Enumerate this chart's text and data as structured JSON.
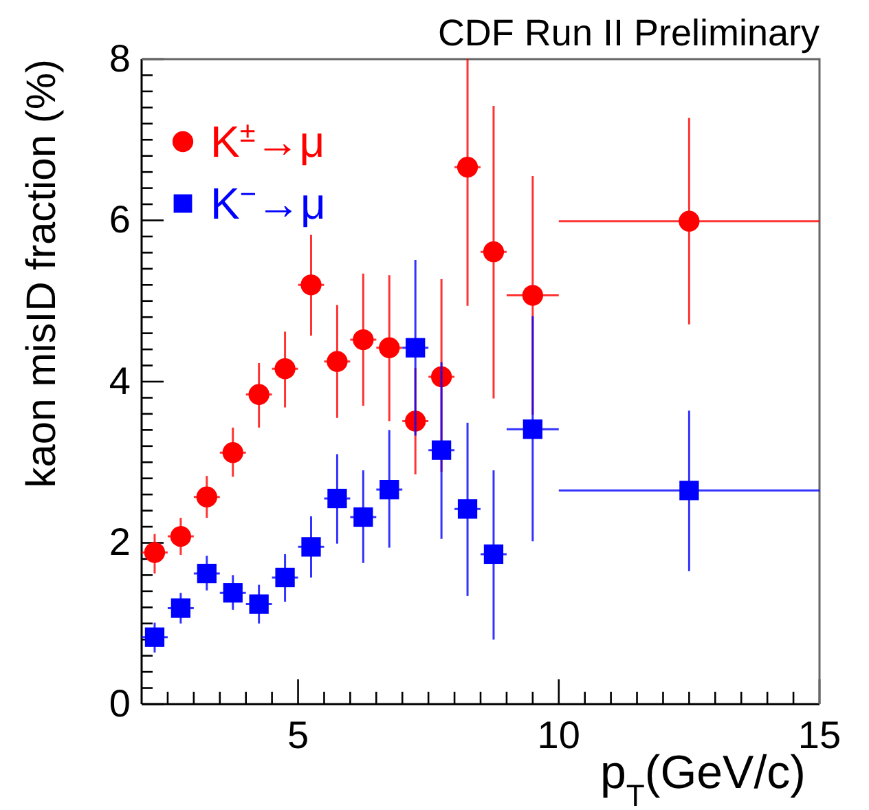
{
  "chart_data": {
    "type": "scatter",
    "title": "CDF Run II Preliminary",
    "xlabel": "p$_{T}$(GeV/c)",
    "ylabel": "kaon misID fraction (%)",
    "xlim": [
      2,
      15
    ],
    "ylim": [
      0,
      8
    ],
    "xticks": [
      {
        "value": 2.5,
        "label": null
      },
      {
        "value": 3,
        "label": null
      },
      {
        "value": 3.5,
        "label": null
      },
      {
        "value": 4,
        "label": null
      },
      {
        "value": 4.5,
        "label": null
      },
      5,
      {
        "value": 5.5,
        "label": null
      },
      {
        "value": 6,
        "label": null
      },
      {
        "value": 6.5,
        "label": null
      },
      {
        "value": 7,
        "label": null
      },
      {
        "value": 7.5,
        "label": null
      },
      {
        "value": 8,
        "label": null
      },
      {
        "value": 8.5,
        "label": null
      },
      {
        "value": 9,
        "label": null
      },
      {
        "value": 9.5,
        "label": null
      },
      10,
      {
        "value": 10.5,
        "label": null
      },
      {
        "value": 11,
        "label": null
      },
      {
        "value": 11.5,
        "label": null
      },
      {
        "value": 12,
        "label": null
      },
      {
        "value": 12.5,
        "label": null
      },
      {
        "value": 13,
        "label": null
      },
      {
        "value": 13.5,
        "label": null
      },
      {
        "value": 14,
        "label": null
      },
      {
        "value": 14.5,
        "label": null
      },
      15
    ],
    "yticks": [
      0,
      {
        "value": 0.2,
        "label": null
      },
      {
        "value": 0.4,
        "label": null
      },
      {
        "value": 0.6,
        "label": null
      },
      {
        "value": 0.8,
        "label": null
      },
      {
        "value": 1,
        "label": null
      },
      {
        "value": 1.2,
        "label": null
      },
      {
        "value": 1.4,
        "label": null
      },
      {
        "value": 1.6,
        "label": null
      },
      {
        "value": 1.8,
        "label": null
      },
      2,
      {
        "value": 2.2,
        "label": null
      },
      {
        "value": 2.4,
        "label": null
      },
      {
        "value": 2.6,
        "label": null
      },
      {
        "value": 2.8,
        "label": null
      },
      {
        "value": 3,
        "label": null
      },
      {
        "value": 3.2,
        "label": null
      },
      {
        "value": 3.4,
        "label": null
      },
      {
        "value": 3.6,
        "label": null
      },
      {
        "value": 3.8,
        "label": null
      },
      4,
      {
        "value": 4.2,
        "label": null
      },
      {
        "value": 4.4,
        "label": null
      },
      {
        "value": 4.6,
        "label": null
      },
      {
        "value": 4.8,
        "label": null
      },
      {
        "value": 5,
        "label": null
      },
      {
        "value": 5.2,
        "label": null
      },
      {
        "value": 5.4,
        "label": null
      },
      {
        "value": 5.6,
        "label": null
      },
      {
        "value": 5.8,
        "label": null
      },
      6,
      {
        "value": 6.2,
        "label": null
      },
      {
        "value": 6.4,
        "label": null
      },
      {
        "value": 6.6,
        "label": null
      },
      {
        "value": 6.8,
        "label": null
      },
      {
        "value": 7,
        "label": null
      },
      {
        "value": 7.2,
        "label": null
      },
      {
        "value": 7.4,
        "label": null
      },
      {
        "value": 7.6,
        "label": null
      },
      {
        "value": 7.8,
        "label": null
      },
      8
    ],
    "grid": false,
    "legend": "top left",
    "x": [
      2.25,
      2.75,
      3.25,
      3.75,
      4.25,
      4.75,
      5.25,
      5.75,
      6.25,
      6.75,
      7.25,
      7.75,
      8.25,
      8.75,
      9.5,
      12.5
    ],
    "series": [
      {
        "name": "K$^{±}$→μ",
        "color": "#ff0000",
        "marker": "circle",
        "values": [
          1.88,
          2.08,
          2.57,
          3.12,
          3.84,
          4.16,
          5.2,
          4.25,
          4.52,
          4.42,
          3.51,
          4.06,
          6.66,
          5.61,
          5.07,
          5.99
        ],
        "errors": [
          [
            1.62,
            2.11
          ],
          [
            1.85,
            2.31
          ],
          [
            2.31,
            2.83
          ],
          [
            2.82,
            3.43
          ],
          [
            3.43,
            4.23
          ],
          [
            3.68,
            4.62
          ],
          [
            4.57,
            5.82
          ],
          [
            3.55,
            4.95
          ],
          [
            3.7,
            5.34
          ],
          [
            3.51,
            5.32
          ],
          [
            2.85,
            4.17
          ],
          [
            2.88,
            5.27
          ],
          [
            4.94,
            8
          ],
          [
            3.79,
            7.42
          ],
          [
            3.59,
            6.55
          ],
          [
            4.71,
            7.27
          ]
        ],
        "xerrors": [
          0.25,
          0.25,
          0.25,
          0.25,
          0.25,
          0.25,
          0.25,
          0.25,
          0.25,
          0.25,
          0.25,
          0.25,
          0.25,
          0.25,
          0.5,
          2.5
        ]
      },
      {
        "name": "K$^{−}$→μ",
        "color": "#0000ff",
        "marker": "square",
        "values": [
          0.83,
          1.19,
          1.62,
          1.38,
          1.24,
          1.57,
          1.95,
          2.55,
          2.32,
          2.66,
          4.42,
          3.15,
          2.42,
          1.86,
          3.41,
          2.65
        ],
        "errors": [
          [
            0.64,
            1.01
          ],
          [
            1.0,
            1.38
          ],
          [
            1.41,
            1.84
          ],
          [
            1.17,
            1.6
          ],
          [
            1.0,
            1.48
          ],
          [
            1.27,
            1.86
          ],
          [
            1.57,
            2.33
          ],
          [
            1.99,
            3.1
          ],
          [
            1.75,
            2.9
          ],
          [
            1.94,
            3.4
          ],
          [
            3.33,
            5.51
          ],
          [
            2.05,
            4.24
          ],
          [
            1.34,
            3.49
          ],
          [
            0.8,
            2.9
          ],
          [
            2.02,
            4.81
          ],
          [
            1.65,
            3.64
          ]
        ],
        "xerrors": [
          0.25,
          0.25,
          0.25,
          0.25,
          0.25,
          0.25,
          0.25,
          0.25,
          0.25,
          0.25,
          0.25,
          0.25,
          0.25,
          0.25,
          0.5,
          2.5
        ]
      }
    ]
  }
}
